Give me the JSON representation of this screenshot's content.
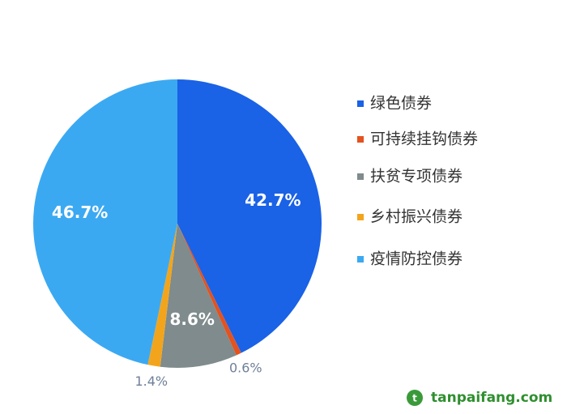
{
  "chart_data": {
    "type": "pie",
    "categories": [
      "绿色债券",
      "可持续挂钩债券",
      "扶贫专项债券",
      "乡村振兴债券",
      "疫情防控债券"
    ],
    "values": [
      42.7,
      0.6,
      8.6,
      1.4,
      46.7
    ],
    "value_labels": [
      "42.7%",
      "0.6%",
      "8.6%",
      "1.4%",
      "46.7%"
    ],
    "colors": [
      "#1a62e6",
      "#e4521f",
      "#7f8b8c",
      "#f2a51c",
      "#3ba9f2"
    ]
  },
  "watermark": "tanpaifang.com"
}
